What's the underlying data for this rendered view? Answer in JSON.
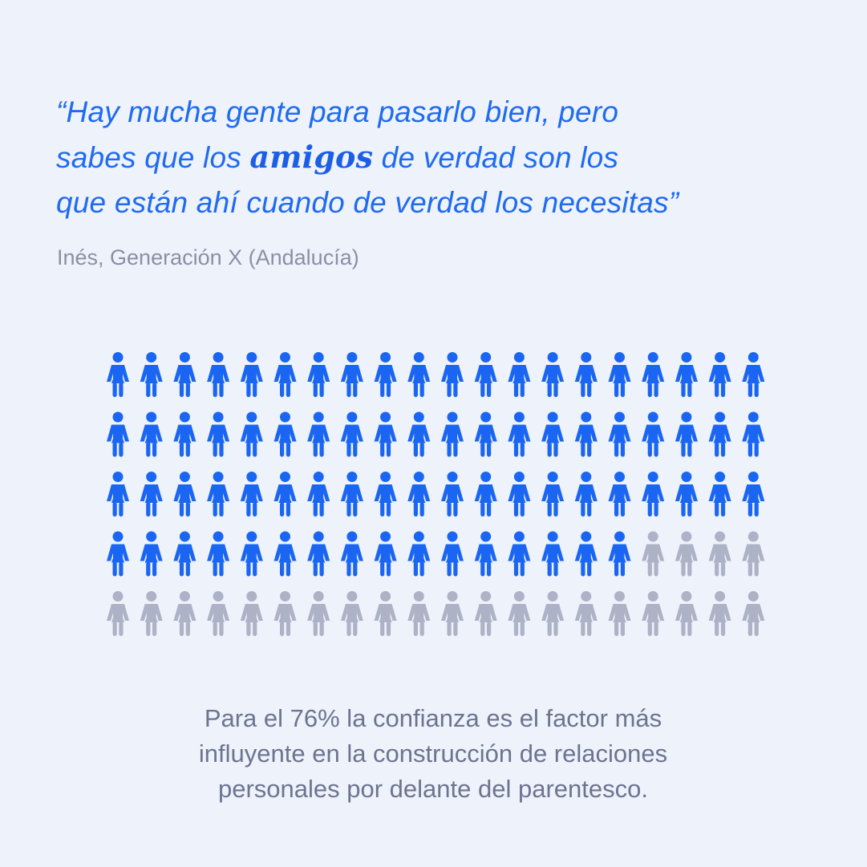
{
  "quote": {
    "line1": "“Hay mucha gente para pasarlo bien, pero",
    "line2_before": "sabes que los ",
    "line2_highlight": "amigos",
    "line2_after": " de verdad son los",
    "line3": "que están ahí cuando de verdad los necesitas”"
  },
  "author": "Inés, Generación X (Andalucía)",
  "caption": {
    "line1": "Para el 76% la confianza es el factor más",
    "line2": "influyente en la construcción de relaciones",
    "line3": "personales por delante del parentesco."
  },
  "chart_data": {
    "type": "pictogram",
    "total": 100,
    "highlighted": 76,
    "rows": 5,
    "columns": 20,
    "colors": {
      "highlighted": "#1a66f2",
      "rest": "#aeb2c6"
    }
  }
}
